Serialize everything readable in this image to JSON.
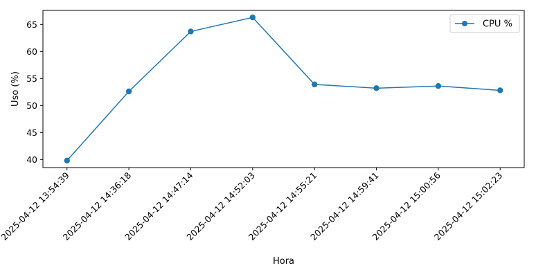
{
  "chart_data": {
    "type": "line",
    "title": "",
    "xlabel": "Hora",
    "ylabel": "Uso (%)",
    "categories": [
      "2025-04-12 13:54:39",
      "2025-04-12 14:36:18",
      "2025-04-12 14:47:14",
      "2025-04-12 14:52:03",
      "2025-04-12 14:55:21",
      "2025-04-12 14:59:41",
      "2025-04-12 15:00:56",
      "2025-04-12 15:02:23"
    ],
    "series": [
      {
        "name": "CPU %",
        "values": [
          39.8,
          52.6,
          63.7,
          66.3,
          53.9,
          53.2,
          53.6,
          52.8
        ],
        "color": "#1f77b4",
        "marker": "circle"
      }
    ],
    "ylim": [
      38.5,
      67.6
    ],
    "yticks": [
      40,
      45,
      50,
      55,
      60,
      65
    ],
    "grid": false,
    "legend": "top-right"
  }
}
